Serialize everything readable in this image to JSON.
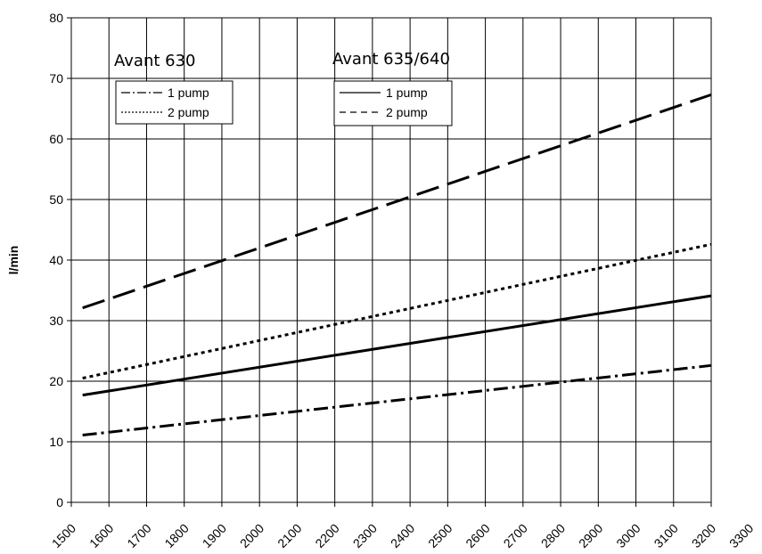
{
  "chart_data": {
    "type": "line",
    "title": "",
    "xlabel": "",
    "ylabel": "l/min",
    "xlim": [
      1500,
      3300
    ],
    "ylim": [
      0,
      80
    ],
    "x_ticks": [
      1500,
      1600,
      1700,
      1800,
      1900,
      2000,
      2100,
      2200,
      2300,
      2400,
      2500,
      2600,
      2700,
      2800,
      2900,
      3000,
      3100,
      3200,
      3300
    ],
    "y_ticks": [
      0,
      10,
      20,
      30,
      40,
      50,
      60,
      70,
      80
    ],
    "grid": true,
    "x": [
      1530,
      3200
    ],
    "legends": [
      {
        "title": "Avant 630",
        "entries": [
          "1 pump",
          "2 pump"
        ]
      },
      {
        "title": "Avant 635/640",
        "entries": [
          "1 pump",
          "2 pump"
        ]
      }
    ],
    "series": [
      {
        "group": "Avant 630",
        "name": "1 pump",
        "style": "dash-dot",
        "color": "#000000",
        "values": [
          11.1,
          22.6
        ]
      },
      {
        "group": "Avant 630",
        "name": "2 pump",
        "style": "dotted",
        "color": "#000000",
        "values": [
          20.5,
          42.6
        ]
      },
      {
        "group": "Avant 635/640",
        "name": "1 pump",
        "style": "solid",
        "color": "#000000",
        "values": [
          17.7,
          34.1
        ]
      },
      {
        "group": "Avant 635/640",
        "name": "2 pump",
        "style": "long-dash",
        "color": "#000000",
        "values": [
          32.1,
          67.3
        ]
      }
    ]
  }
}
